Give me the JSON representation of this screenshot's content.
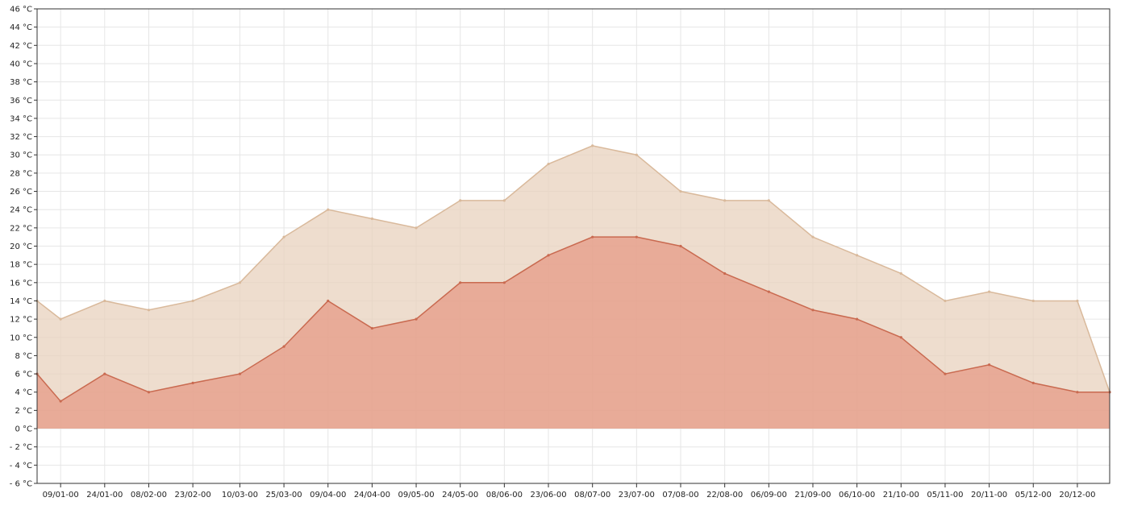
{
  "chart_data": {
    "type": "area",
    "title": "",
    "xlabel": "",
    "ylabel": "",
    "unit": "°C",
    "ylim": [
      -6,
      46
    ],
    "y_tick_step": 2,
    "y_ticks": [
      "- 6 °C",
      "- 4 °C",
      "- 2 °C",
      "0 °C",
      "2 °C",
      "4 °C",
      "6 °C",
      "8 °C",
      "10 °C",
      "12 °C",
      "14 °C",
      "16 °C",
      "18 °C",
      "20 °C",
      "22 °C",
      "24 °C",
      "26 °C",
      "28 °C",
      "30 °C",
      "32 °C",
      "34 °C",
      "36 °C",
      "38 °C",
      "40 °C",
      "42 °C",
      "44 °C",
      "46 °C"
    ],
    "x_range": [
      "2000-01-01",
      "2000-12-31"
    ],
    "x_ticks": [
      "09/01-00",
      "24/01-00",
      "08/02-00",
      "23/02-00",
      "10/03-00",
      "25/03-00",
      "09/04-00",
      "24/04-00",
      "09/05-00",
      "24/05-00",
      "08/06-00",
      "23/06-00",
      "08/07-00",
      "23/07-00",
      "07/08-00",
      "22/08-00",
      "06/09-00",
      "21/09-00",
      "06/10-00",
      "21/10-00",
      "05/11-00",
      "20/11-00",
      "05/12-00",
      "20/12-00"
    ],
    "x_tick_dates": [
      "2000-01-09",
      "2000-01-24",
      "2000-02-08",
      "2000-02-23",
      "2000-03-10",
      "2000-03-25",
      "2000-04-09",
      "2000-04-24",
      "2000-05-09",
      "2000-05-24",
      "2000-06-08",
      "2000-06-23",
      "2000-07-08",
      "2000-07-23",
      "2000-08-07",
      "2000-08-22",
      "2000-09-06",
      "2000-09-21",
      "2000-10-06",
      "2000-10-21",
      "2000-11-05",
      "2000-11-20",
      "2000-12-05",
      "2000-12-20"
    ],
    "grid": true,
    "series": [
      {
        "color": "#d9b99b",
        "fill": "#e8d2be",
        "x": [
          "2000-01-01",
          "2000-01-09",
          "2000-01-24",
          "2000-02-08",
          "2000-02-23",
          "2000-03-10",
          "2000-03-25",
          "2000-04-09",
          "2000-04-24",
          "2000-05-09",
          "2000-05-24",
          "2000-06-08",
          "2000-06-23",
          "2000-07-08",
          "2000-07-23",
          "2000-08-07",
          "2000-08-22",
          "2000-09-06",
          "2000-09-21",
          "2000-10-06",
          "2000-10-21",
          "2000-11-05",
          "2000-11-20",
          "2000-12-05",
          "2000-12-20",
          "2000-12-31"
        ],
        "values": [
          14,
          12,
          14,
          13,
          14,
          16,
          21,
          24,
          23,
          22,
          25,
          25,
          29,
          31,
          30,
          26,
          25,
          25,
          21,
          19,
          17,
          14,
          15,
          14,
          14,
          4
        ]
      },
      {
        "color": "#c96a50",
        "fill": "#e59a86",
        "x": [
          "2000-01-01",
          "2000-01-09",
          "2000-01-24",
          "2000-02-08",
          "2000-02-23",
          "2000-03-10",
          "2000-03-25",
          "2000-04-09",
          "2000-04-24",
          "2000-05-09",
          "2000-05-24",
          "2000-06-08",
          "2000-06-23",
          "2000-07-08",
          "2000-07-23",
          "2000-08-07",
          "2000-08-22",
          "2000-09-06",
          "2000-09-21",
          "2000-10-06",
          "2000-10-21",
          "2000-11-05",
          "2000-11-20",
          "2000-12-05",
          "2000-12-20",
          "2000-12-31"
        ],
        "values": [
          6,
          3,
          6,
          4,
          5,
          6,
          9,
          14,
          11,
          12,
          16,
          16,
          19,
          21,
          21,
          20,
          17,
          15,
          13,
          12,
          10,
          6,
          7,
          5,
          4,
          4
        ]
      }
    ]
  }
}
